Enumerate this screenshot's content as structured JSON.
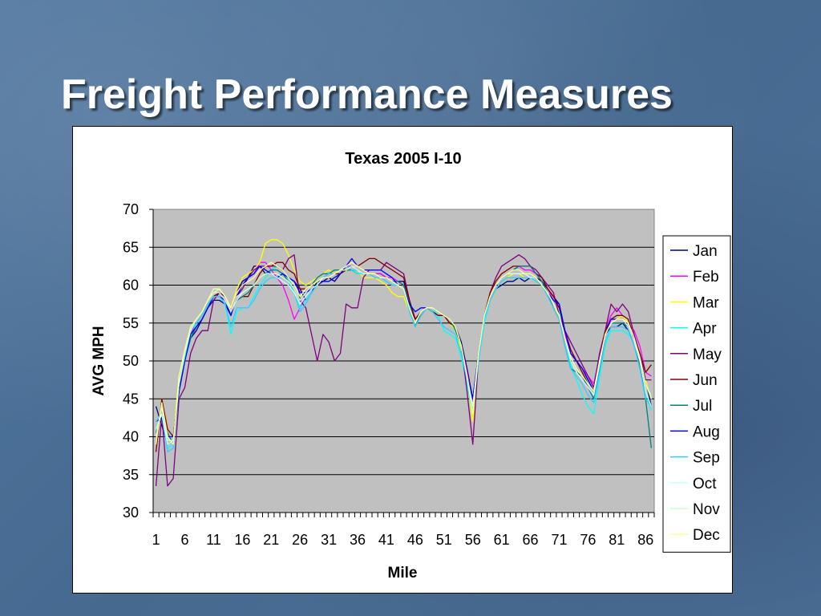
{
  "slide": {
    "title": "Freight Performance Measures"
  },
  "chart_data": {
    "type": "line",
    "title": "Texas 2005 I-10",
    "xlabel": "Mile",
    "ylabel": "AVG MPH",
    "ylim": [
      30,
      70
    ],
    "yticks": [
      30,
      35,
      40,
      45,
      50,
      55,
      60,
      65,
      70
    ],
    "x_tick_labels": [
      "1",
      "6",
      "11",
      "16",
      "21",
      "26",
      "31",
      "36",
      "41",
      "46",
      "51",
      "56",
      "61",
      "66",
      "71",
      "76",
      "81",
      "86"
    ],
    "x_range": [
      1,
      88
    ],
    "grid": "horizontal",
    "plot_background": "#c0c0c0",
    "legend_position": "right",
    "series": [
      {
        "name": "Jan",
        "color": "#000080",
        "values": [
          44,
          41.5,
          39,
          39.5,
          46,
          50,
          53,
          54,
          55.5,
          57,
          58,
          58,
          57.5,
          56,
          59,
          60.5,
          61,
          62.5,
          62.5,
          61.5,
          62,
          62.5,
          62,
          61,
          60.5,
          59.5,
          58,
          59,
          60.5,
          60.5,
          61,
          60.5,
          61.5,
          62,
          62,
          61.5,
          61.5,
          61.5,
          61.5,
          61.5,
          61,
          60.5,
          60.5,
          60.5,
          58,
          55.5,
          56.5,
          57,
          56.5,
          56,
          56,
          55.5,
          54.5,
          52.5,
          49,
          45,
          51,
          55.5,
          58,
          59.5,
          60,
          60.5,
          60.5,
          61,
          60.5,
          61,
          61,
          60.5,
          59.5,
          58.5,
          57.5,
          54,
          51,
          50,
          49,
          47.5,
          46,
          49.5,
          53.5,
          54.5,
          54.5,
          55,
          54,
          53,
          51,
          47.5,
          44
        ]
      },
      {
        "name": "Feb",
        "color": "#ff00ff",
        "values": [
          41,
          43,
          40.5,
          39,
          47,
          51,
          53.5,
          55,
          56,
          57.5,
          58.5,
          59,
          58,
          56.5,
          59,
          60,
          61,
          61.5,
          63,
          63,
          62,
          61,
          60,
          58,
          55.5,
          57,
          58.5,
          59.5,
          60,
          61,
          61.5,
          61.5,
          62,
          62.5,
          62.5,
          62,
          61.5,
          61.5,
          61.5,
          61.5,
          61,
          61,
          60.5,
          60,
          57.5,
          55,
          56.5,
          57,
          57,
          56.5,
          56,
          55.5,
          54.5,
          52,
          48.5,
          44.5,
          51,
          56,
          58.5,
          60,
          61,
          61.5,
          62,
          62.5,
          62,
          62,
          61.5,
          61,
          59.5,
          58,
          57,
          53.5,
          51,
          50,
          49,
          48,
          47,
          50.5,
          54,
          56,
          57,
          56,
          55,
          54,
          52,
          48.5,
          48
        ]
      },
      {
        "name": "Mar",
        "color": "#ffff00",
        "values": [
          39,
          45,
          41,
          40,
          48,
          51,
          54,
          55.5,
          56.5,
          58,
          59,
          59.5,
          58.5,
          57,
          59.5,
          61,
          61.5,
          62,
          63,
          65.5,
          66,
          66,
          65.5,
          64,
          62,
          60.5,
          60,
          60.5,
          61,
          61.5,
          62,
          61.5,
          61.5,
          62,
          62,
          62,
          61,
          61,
          61,
          60.5,
          60,
          59,
          58.5,
          58.5,
          56.5,
          54.5,
          56.5,
          57,
          57,
          56.5,
          56,
          55,
          54,
          51.5,
          47.5,
          42,
          50.5,
          55.5,
          58,
          59.5,
          60.5,
          61,
          61.5,
          61.5,
          61,
          61,
          60.5,
          60,
          58.5,
          57,
          56,
          53,
          50.5,
          49,
          48,
          47,
          46,
          50,
          53.5,
          55,
          55.5,
          56,
          55,
          53.5,
          51,
          47.5,
          45
        ]
      },
      {
        "name": "Apr",
        "color": "#00ffff",
        "values": [
          40,
          43,
          38.5,
          39,
          47,
          50,
          53,
          55,
          56,
          57.5,
          58.5,
          58.5,
          57.5,
          53.5,
          56.5,
          57,
          57,
          58.5,
          60,
          61,
          62,
          62.5,
          62,
          61,
          59,
          57,
          58,
          59,
          60,
          61,
          61,
          61.5,
          62,
          62.5,
          62,
          61.5,
          61.5,
          61.5,
          61,
          61,
          60.5,
          60,
          60,
          59.5,
          56.5,
          54.5,
          56,
          57,
          57,
          56,
          54,
          53.5,
          53,
          50.5,
          47,
          43,
          50,
          55,
          58,
          59.5,
          60.5,
          61,
          61,
          61,
          61,
          61,
          60.5,
          60,
          58.5,
          57,
          56.5,
          53,
          49.5,
          47.5,
          45.5,
          44,
          43,
          48,
          52,
          54,
          54,
          54,
          53.5,
          52.5,
          50,
          46,
          43.5
        ]
      },
      {
        "name": "May",
        "color": "#800080",
        "values": [
          33.5,
          43,
          33.5,
          34.5,
          45,
          46.5,
          51,
          53,
          54,
          54,
          58,
          59,
          58,
          56.5,
          58.5,
          59.5,
          61,
          62,
          62.5,
          62.5,
          62.5,
          62.5,
          62,
          63.5,
          64,
          58,
          57,
          53.5,
          50,
          53.5,
          52.5,
          50,
          51,
          57.5,
          57,
          57,
          61,
          62,
          62,
          62,
          63,
          62.5,
          62,
          61.5,
          58,
          55,
          56,
          57,
          57,
          56.5,
          56,
          55,
          54.5,
          52,
          46,
          39,
          50.5,
          56,
          59,
          61,
          62.5,
          63,
          63.5,
          64,
          63.5,
          62.5,
          62,
          61,
          60,
          59,
          56,
          54,
          52.5,
          51,
          49.5,
          48,
          46.5,
          51,
          54,
          57.5,
          56.5,
          57.5,
          56.5,
          53.5,
          51,
          47.5,
          47.5
        ]
      },
      {
        "name": "Jun",
        "color": "#800000",
        "values": [
          38,
          45,
          41,
          40,
          47,
          51,
          53.5,
          54.5,
          55.5,
          57,
          58.5,
          59,
          58.5,
          56.5,
          58,
          58.5,
          58.5,
          60,
          61.5,
          62.5,
          62.5,
          63,
          63,
          62,
          61.5,
          59.5,
          59.5,
          60,
          60.5,
          61,
          61,
          61.5,
          61.5,
          62,
          62.5,
          62.5,
          63,
          63.5,
          63.5,
          63,
          62.5,
          62,
          61.5,
          61,
          58,
          55.5,
          56.5,
          57,
          56.5,
          56,
          56,
          55,
          54.5,
          52,
          48,
          44,
          51,
          56,
          59,
          60.5,
          61.5,
          62,
          62.5,
          62.5,
          62.5,
          62.5,
          61.5,
          61,
          59.5,
          58.5,
          57,
          54,
          51.5,
          50,
          48.5,
          47,
          46,
          50,
          54,
          55.5,
          56,
          56,
          55.5,
          53,
          51,
          48.5,
          49.5
        ]
      },
      {
        "name": "Jul",
        "color": "#008080",
        "values": [
          40.5,
          43,
          40.5,
          39,
          46,
          50,
          53,
          54.5,
          55.5,
          57,
          58.5,
          58.5,
          58,
          56.5,
          58,
          58.5,
          59,
          60,
          61,
          61.5,
          62,
          62,
          61.5,
          60.5,
          59.5,
          58,
          59,
          60,
          61,
          61.5,
          61.5,
          62,
          62,
          62,
          62,
          62,
          61.5,
          61.5,
          61.5,
          61,
          61,
          60.5,
          60.5,
          60,
          57.5,
          54.5,
          56.5,
          57,
          57,
          56.5,
          56,
          55.5,
          54,
          52,
          48,
          44,
          51,
          56,
          58.5,
          60,
          61,
          61.5,
          62,
          62.5,
          62.5,
          62.5,
          61.5,
          60.5,
          59,
          57,
          55.5,
          52,
          49,
          48.5,
          48,
          46.5,
          45,
          49,
          53.5,
          55,
          55,
          55,
          54.5,
          52,
          49.5,
          45,
          38.5
        ]
      },
      {
        "name": "Aug",
        "color": "#0000ff",
        "values": [
          42,
          42.5,
          40,
          40,
          46,
          50,
          53.5,
          54.5,
          55.5,
          57,
          58.5,
          58.5,
          58,
          56,
          58.5,
          60,
          61,
          61.5,
          62.5,
          62,
          61.5,
          61,
          61.5,
          61,
          60.5,
          59,
          59,
          59.5,
          60,
          60.5,
          60.5,
          61,
          61.5,
          62.5,
          63.5,
          62.5,
          62,
          62,
          62,
          62,
          61.5,
          61,
          60,
          59.5,
          57.5,
          56.5,
          57,
          57,
          57,
          56.5,
          56,
          55.5,
          54.5,
          52,
          48,
          45,
          51,
          56,
          58.5,
          60,
          61,
          61.5,
          62,
          62,
          61.5,
          61.5,
          61,
          60,
          59,
          58,
          57.5,
          54,
          51,
          50,
          49,
          47.5,
          46,
          50,
          53.5,
          55.5,
          55.5,
          55.5,
          54.5,
          52.5,
          50,
          47,
          45.5
        ]
      },
      {
        "name": "Sep",
        "color": "#33ccff",
        "values": [
          42,
          43,
          38,
          38.5,
          47,
          50.5,
          54,
          55,
          56,
          57.5,
          58.5,
          58.5,
          57.5,
          54.5,
          57,
          57,
          57,
          58,
          59.5,
          60.5,
          61,
          61,
          61,
          60.5,
          59,
          56.5,
          57.5,
          59,
          60,
          61,
          61.5,
          61.5,
          62,
          62.5,
          62,
          62,
          61.5,
          61.5,
          61,
          61,
          60.5,
          60,
          60,
          59.5,
          56.5,
          54.5,
          56,
          57,
          56.5,
          55.5,
          54.5,
          54,
          53.5,
          51,
          47.5,
          43.5,
          50,
          55.5,
          58,
          59.5,
          60.5,
          61,
          61,
          61,
          61,
          61,
          60.5,
          60,
          58.5,
          57,
          55.5,
          52,
          49,
          48,
          47,
          45.5,
          44.5,
          48.5,
          52.5,
          54.5,
          54.5,
          54.5,
          54,
          52,
          49,
          45,
          44
        ]
      },
      {
        "name": "Oct",
        "color": "#ccffff",
        "values": [
          41,
          43,
          39,
          39.5,
          47,
          51,
          54,
          55.5,
          56.5,
          58,
          59,
          59,
          58,
          56.5,
          58,
          59,
          59.5,
          60,
          61,
          61.5,
          61.5,
          61,
          60.5,
          60,
          59,
          57.5,
          58.5,
          59.5,
          60,
          61,
          61,
          61.5,
          62,
          62,
          62.5,
          62,
          61.5,
          61.5,
          61.5,
          61,
          61,
          60.5,
          60,
          59.5,
          57,
          55,
          56.5,
          57,
          57,
          56.5,
          56,
          55.5,
          54.5,
          52,
          48,
          44,
          51,
          56,
          58.5,
          60,
          61,
          61.5,
          61.5,
          61.5,
          61.5,
          61,
          61,
          60,
          59,
          57.5,
          56,
          53,
          50,
          48.5,
          47.5,
          46.5,
          45.5,
          49.5,
          53.5,
          55,
          55.5,
          55.5,
          54.5,
          52.5,
          50,
          46,
          44
        ]
      },
      {
        "name": "Nov",
        "color": "#ccffcc",
        "values": [
          40,
          44,
          39.5,
          39.5,
          47,
          51,
          54,
          55.5,
          56.5,
          58,
          59,
          59.5,
          58.5,
          56.5,
          58.5,
          59,
          59.5,
          60,
          61,
          61.5,
          61.5,
          61.5,
          61,
          60.5,
          59.5,
          58,
          59,
          60,
          60.5,
          61,
          61,
          61.5,
          62,
          62,
          62.5,
          62.5,
          62,
          61.5,
          61.5,
          61,
          61,
          60.5,
          60,
          59.5,
          57,
          55,
          56.5,
          57,
          57,
          56.5,
          56,
          55.5,
          54.5,
          52,
          48,
          44,
          51,
          56,
          58.5,
          60,
          61,
          61.5,
          62,
          62,
          61.5,
          61.5,
          61,
          60,
          59,
          57.5,
          56,
          53,
          50.5,
          49,
          48,
          47,
          46,
          50,
          53.5,
          55,
          55.5,
          55.5,
          55,
          53,
          50.5,
          47,
          45.5
        ]
      },
      {
        "name": "Dec",
        "color": "#ffff99",
        "values": [
          39,
          44.5,
          40,
          39,
          48,
          51.5,
          54.5,
          55.5,
          56.5,
          58,
          59.5,
          59.5,
          58.5,
          57,
          59,
          60,
          60.5,
          61,
          62,
          62.5,
          63,
          62.5,
          62,
          61,
          60,
          58.5,
          59.5,
          60,
          60.5,
          61,
          61,
          61.5,
          62,
          62.5,
          63,
          62.5,
          62,
          61.5,
          61.5,
          61,
          61,
          60.5,
          60,
          59.5,
          57,
          55,
          56.5,
          57,
          57,
          56.5,
          56,
          55.5,
          54.5,
          52,
          48,
          43,
          51,
          56,
          58.5,
          60,
          61,
          61.5,
          62,
          62,
          61.5,
          61.5,
          61,
          60,
          59,
          57.5,
          56,
          53,
          50.5,
          49,
          48,
          47,
          46,
          50,
          53.5,
          55,
          55.5,
          55.5,
          55,
          53,
          50.5,
          47,
          45
        ]
      }
    ]
  }
}
